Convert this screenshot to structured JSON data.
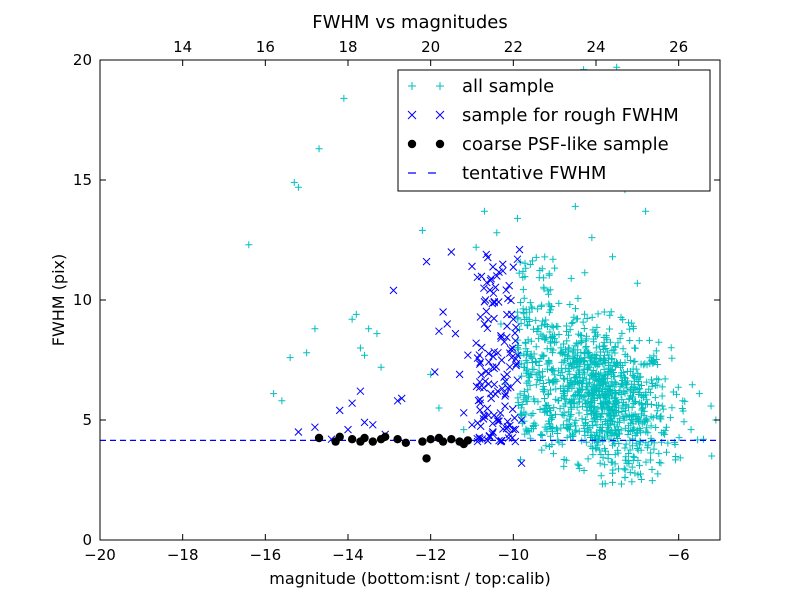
{
  "chart_data": {
    "type": "scatter",
    "title": "FWHM vs magnitudes",
    "xlabel": "magnitude (bottom:isnt / top:calib)",
    "ylabel": "FWHM (pix)",
    "xlim": [
      -20,
      -5
    ],
    "ylim": [
      0,
      20
    ],
    "x_ticks": [
      -20,
      -18,
      -16,
      -14,
      -12,
      -10,
      -8,
      -6
    ],
    "y_ticks": [
      0,
      5,
      10,
      15,
      20
    ],
    "top_axis": {
      "offset_from_bottom": 32,
      "ticks": [
        14,
        16,
        18,
        20,
        22,
        24,
        26
      ]
    },
    "grid": false,
    "legend_position": "top-right",
    "colors": {
      "all_sample": "#00bfbf",
      "rough_fwhm": "#0000ff",
      "coarse_psf": "#000000",
      "tentative": "#0000ff"
    },
    "series": [
      {
        "name": "all sample",
        "marker": "+",
        "note_counts_approx": "~1000 points, dense cloud centered near x=-8, y=6",
        "points": [
          [
            -16.4,
            12.3
          ],
          [
            -15.8,
            6.1
          ],
          [
            -15.6,
            5.8
          ],
          [
            -15.4,
            7.6
          ],
          [
            -15.3,
            14.9
          ],
          [
            -15.2,
            14.7
          ],
          [
            -15.0,
            7.8
          ],
          [
            -14.8,
            8.8
          ],
          [
            -14.7,
            16.3
          ],
          [
            -14.1,
            18.4
          ],
          [
            -13.9,
            9.2
          ],
          [
            -13.8,
            9.4
          ],
          [
            -13.7,
            8.0
          ],
          [
            -13.6,
            7.7
          ],
          [
            -13.5,
            8.8
          ],
          [
            -13.3,
            8.6
          ],
          [
            -13.2,
            7.2
          ],
          [
            -12.2,
            12.9
          ],
          [
            -12.0,
            6.9
          ],
          [
            -11.8,
            5.5
          ],
          [
            -11.2,
            4.6
          ],
          [
            -10.9,
            12.2
          ],
          [
            -10.7,
            13.7
          ],
          [
            -10.4,
            12.8
          ],
          [
            -10.3,
            9.0
          ],
          [
            -10.2,
            6.5
          ],
          [
            -10.0,
            16.6
          ],
          [
            -9.9,
            13.4
          ],
          [
            -9.7,
            8.2
          ],
          [
            -9.5,
            17.8
          ],
          [
            -9.3,
            11.3
          ],
          [
            -9.2,
            5.6
          ],
          [
            -9.0,
            14.8
          ],
          [
            -8.8,
            18.8
          ],
          [
            -8.6,
            10.9
          ],
          [
            -8.5,
            13.9
          ],
          [
            -8.3,
            19.6
          ],
          [
            -8.2,
            7.1
          ],
          [
            -8.1,
            12.6
          ],
          [
            -7.9,
            15.7
          ],
          [
            -7.8,
            9.5
          ],
          [
            -7.6,
            11.8
          ],
          [
            -7.5,
            19.7
          ],
          [
            -7.4,
            6.4
          ],
          [
            -7.3,
            14.6
          ],
          [
            -7.1,
            8.9
          ],
          [
            -7.0,
            10.7
          ],
          [
            -6.8,
            13.7
          ],
          [
            -6.6,
            7.4
          ],
          [
            -6.4,
            6.0
          ],
          [
            -6.2,
            5.1
          ],
          [
            -5.9,
            5.8
          ],
          [
            -5.7,
            4.6
          ],
          [
            -5.5,
            6.1
          ],
          [
            -5.4,
            4.2
          ],
          [
            -5.2,
            3.5
          ],
          [
            -5.1,
            5.0
          ],
          [
            -7.9,
            3.2
          ],
          [
            -7.3,
            2.6
          ],
          [
            -7.6,
            2.4
          ]
        ]
      },
      {
        "name": "sample for rough FWHM",
        "marker": "x",
        "points": [
          [
            -15.2,
            4.5
          ],
          [
            -14.8,
            4.7
          ],
          [
            -14.4,
            4.2
          ],
          [
            -14.2,
            5.4
          ],
          [
            -14.0,
            4.6
          ],
          [
            -13.9,
            5.7
          ],
          [
            -13.6,
            4.9
          ],
          [
            -13.7,
            6.2
          ],
          [
            -13.4,
            4.8
          ],
          [
            -13.1,
            4.4
          ],
          [
            -12.9,
            10.4
          ],
          [
            -12.8,
            5.8
          ],
          [
            -12.7,
            5.9
          ],
          [
            -12.1,
            11.6
          ],
          [
            -11.9,
            7.0
          ],
          [
            -11.8,
            8.7
          ],
          [
            -11.7,
            9.5
          ],
          [
            -11.6,
            9.0
          ],
          [
            -11.5,
            12.0
          ],
          [
            -11.4,
            8.6
          ],
          [
            -11.3,
            6.9
          ],
          [
            -11.2,
            5.3
          ],
          [
            -11.1,
            7.7
          ],
          [
            -11.0,
            11.4
          ],
          [
            -10.9,
            8.2
          ],
          [
            -10.8,
            7.4
          ],
          [
            -10.7,
            9.0
          ],
          [
            -10.6,
            6.5
          ],
          [
            -10.5,
            7.2
          ],
          [
            -10.4,
            11.0
          ],
          [
            -10.3,
            8.5
          ],
          [
            -10.2,
            6.0
          ],
          [
            -10.1,
            10.6
          ],
          [
            -10.0,
            9.2
          ],
          [
            -9.9,
            11.7
          ],
          [
            -9.8,
            5.0
          ],
          [
            -9.9,
            7.7
          ],
          [
            -10.0,
            4.6
          ],
          [
            -10.1,
            4.4
          ],
          [
            -10.5,
            4.5
          ],
          [
            -10.8,
            5.7
          ],
          [
            -11.0,
            4.8
          ],
          [
            -9.8,
            3.2
          ],
          [
            -10.3,
            4.1
          ],
          [
            -9.85,
            12.1
          ],
          [
            -9.95,
            8.3
          ],
          [
            -10.15,
            6.9
          ],
          [
            -10.6,
            5.2
          ]
        ]
      },
      {
        "name": "coarse PSF-like sample",
        "marker": "o",
        "points": [
          [
            -14.7,
            4.25
          ],
          [
            -14.3,
            4.1
          ],
          [
            -14.2,
            4.3
          ],
          [
            -13.9,
            4.2
          ],
          [
            -13.7,
            4.1
          ],
          [
            -13.6,
            4.25
          ],
          [
            -13.4,
            4.1
          ],
          [
            -13.2,
            4.2
          ],
          [
            -13.1,
            4.3
          ],
          [
            -12.8,
            4.2
          ],
          [
            -12.6,
            4.05
          ],
          [
            -12.2,
            4.1
          ],
          [
            -12.1,
            3.4
          ],
          [
            -12.0,
            4.2
          ],
          [
            -11.8,
            4.25
          ],
          [
            -11.7,
            4.1
          ],
          [
            -11.5,
            4.2
          ],
          [
            -11.3,
            4.1
          ],
          [
            -11.2,
            4.0
          ],
          [
            -11.1,
            4.15
          ]
        ]
      },
      {
        "name": "tentative FWHM",
        "style": "dashed",
        "y": 4.15
      }
    ]
  }
}
